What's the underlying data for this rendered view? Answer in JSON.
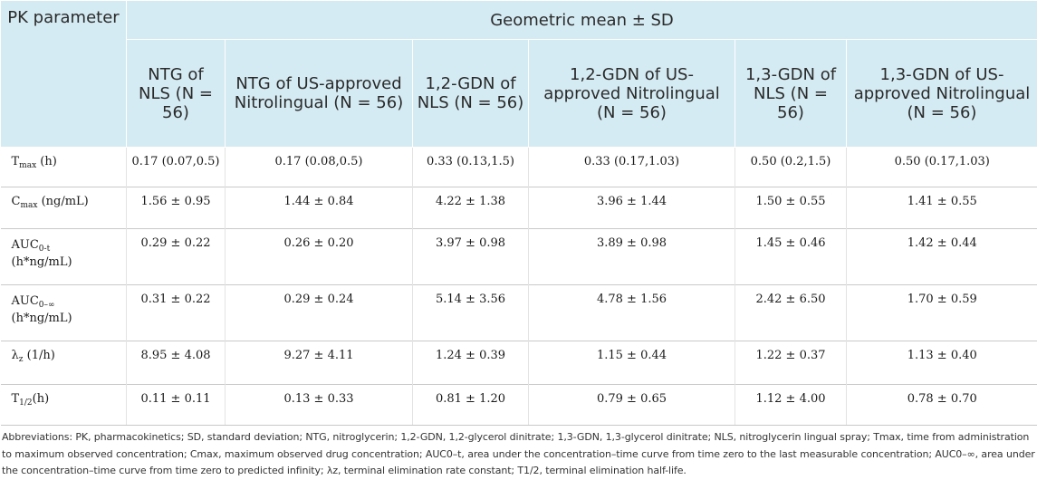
{
  "header": {
    "param_col": "PK parameter",
    "group": "Geometric mean ± SD",
    "columns": [
      "NTG of NLS (N = 56)",
      "NTG of US-approved Nitrolingual (N = 56)",
      "1,2-GDN of NLS (N = 56)",
      "1,2-GDN of US-approved Nitrolingual (N = 56)",
      "1,3-GDN of NLS (N = 56)",
      "1,3-GDN of US-approved Nitrolingual (N = 56)"
    ]
  },
  "rows": [
    {
      "param": {
        "base": "T",
        "sub": "max",
        "tail": " (h)"
      },
      "values": [
        "0.17 (0.07,0.5)",
        "0.17 (0.08,0.5)",
        "0.33 (0.13,1.5)",
        "0.33 (0.17,1.03)",
        "0.50 (0.2,1.5)",
        "0.50 (0.17,1.03)"
      ]
    },
    {
      "param": {
        "base": "C",
        "sub": "max",
        "tail": " (ng/mL)"
      },
      "values": [
        "1.56 ± 0.95",
        "1.44 ± 0.84",
        "4.22 ± 1.38",
        "3.96 ± 1.44",
        "1.50 ± 0.55",
        "1.41 ± 0.55"
      ]
    },
    {
      "param": {
        "base": "AUC",
        "sub": "0-t",
        "tail": "(h*ng/mL)"
      },
      "values": [
        "0.29 ± 0.22",
        "0.26 ± 0.20",
        "3.97 ± 0.98",
        "3.89 ± 0.98",
        "1.45 ± 0.46",
        "1.42 ± 0.44"
      ]
    },
    {
      "param": {
        "base": "AUC",
        "sub": "0–∞",
        "tail": "(h*ng/mL)"
      },
      "values": [
        "0.31 ± 0.22",
        "0.29 ± 0.24",
        "5.14 ± 3.56",
        "4.78 ± 1.56",
        "2.42 ± 6.50",
        "1.70 ± 0.59"
      ]
    },
    {
      "param": {
        "base": "λ",
        "sub": "z",
        "tail": " (1/h)"
      },
      "values": [
        "8.95 ± 4.08",
        "9.27 ± 4.11",
        "1.24 ± 0.39",
        "1.15 ± 0.44",
        "1.22 ± 0.37",
        "1.13 ± 0.40"
      ]
    },
    {
      "param": {
        "base": "T",
        "sub": "1/2",
        "tail": "(h)"
      },
      "values": [
        "0.11 ± 0.11",
        "0.13 ± 0.33",
        "0.81 ± 1.20",
        "0.79 ± 0.65",
        "1.12 ± 4.00",
        "0.78 ± 0.70"
      ]
    }
  ],
  "footnote": "Abbreviations: PK, pharmacokinetics; SD, standard deviation; NTG, nitroglycerin; 1,2-GDN, 1,2-glycerol dinitrate; 1,3-GDN, 1,3-glycerol dinitrate; NLS, nitroglycerin lingual spray; Tmax, time from administration to maximum observed concentration; Cmax, maximum observed drug concentration; AUC0–t, area under the concentration–time curve from time zero to the last measurable concentration; AUC0–∞, area under the concentration–time curve from time zero to predicted infinity; λz, terminal elimination rate constant; T1/2, terminal elimination half-life."
}
